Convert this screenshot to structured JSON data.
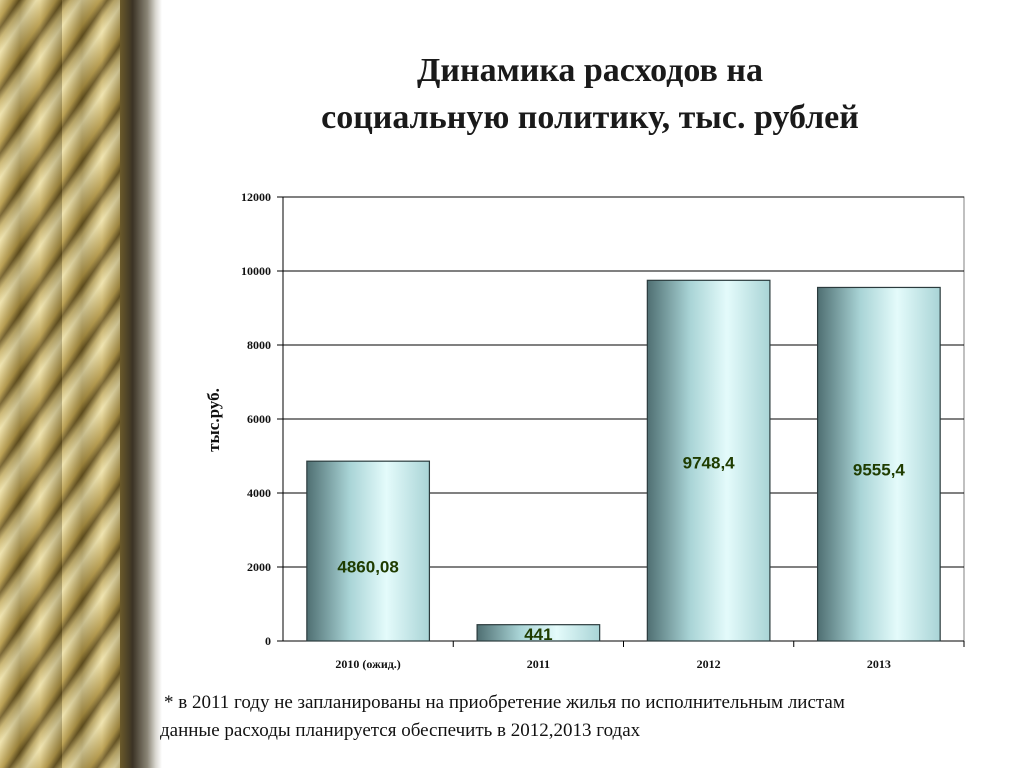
{
  "title_lines": [
    "Динамика расходов на",
    "социальную политику, тыс. рублей"
  ],
  "footnote_lines": [
    "* в 2011 году не запланированы на приобретение жилья по исполнительным листам",
    "данные расходы планируется обеспечить в 2012,2013 годах"
  ],
  "chart_data": {
    "type": "bar",
    "categories": [
      "2010 (ожид.)",
      "2011",
      "2012",
      "2013"
    ],
    "values": [
      4860.08,
      441,
      9748.4,
      9555.4
    ],
    "data_labels": [
      "4860,08",
      "441",
      "9748,4",
      "9555,4"
    ],
    "ylabel": "тыс.руб.",
    "ylim": [
      0,
      12000
    ],
    "yticks": [
      0,
      2000,
      4000,
      6000,
      8000,
      10000,
      12000
    ],
    "grid": true,
    "legend": "none",
    "colors": {
      "bar_light": "#e4fbfb",
      "bar_mid": "#a9d4d6",
      "bar_dark": "#4f6f72",
      "bar_edge": "#2b3b3d",
      "label": "#1f3c00"
    }
  }
}
